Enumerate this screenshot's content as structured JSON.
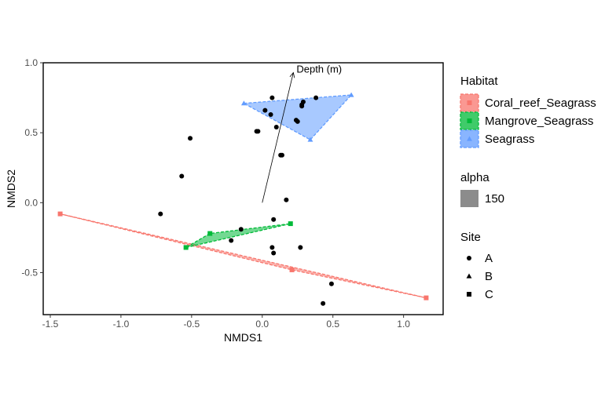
{
  "chart_data": {
    "type": "scatter",
    "title": "",
    "xlabel": "NMDS1",
    "ylabel": "NMDS2",
    "xlim": [
      -1.55,
      1.28
    ],
    "ylim": [
      -0.8,
      1.0
    ],
    "x_ticks": [
      -1.5,
      -1.0,
      -0.5,
      0.0,
      0.5,
      1.0
    ],
    "x_tick_labels": [
      "-1.5",
      "-1.0",
      "-0.5",
      "0.0",
      "0.5",
      "1.0"
    ],
    "y_ticks": [
      -0.5,
      0.0,
      0.5,
      1.0
    ],
    "y_tick_labels": [
      "-0.5",
      "0.0",
      "0.5",
      "1.0"
    ],
    "grid": false,
    "points": [
      {
        "x": 0.07,
        "y": 0.75
      },
      {
        "x": 0.38,
        "y": 0.75
      },
      {
        "x": 0.29,
        "y": 0.72
      },
      {
        "x": 0.28,
        "y": 0.7
      },
      {
        "x": 0.28,
        "y": 0.69
      },
      {
        "x": 0.02,
        "y": 0.66
      },
      {
        "x": 0.06,
        "y": 0.63
      },
      {
        "x": 0.24,
        "y": 0.59
      },
      {
        "x": 0.25,
        "y": 0.58
      },
      {
        "x": 0.1,
        "y": 0.54
      },
      {
        "x": -0.04,
        "y": 0.51
      },
      {
        "x": -0.03,
        "y": 0.51
      },
      {
        "x": -0.51,
        "y": 0.46
      },
      {
        "x": 0.13,
        "y": 0.34
      },
      {
        "x": 0.14,
        "y": 0.34
      },
      {
        "x": -0.57,
        "y": 0.19
      },
      {
        "x": 0.17,
        "y": 0.02
      },
      {
        "x": -0.72,
        "y": -0.08
      },
      {
        "x": 0.08,
        "y": -0.12
      },
      {
        "x": -0.15,
        "y": -0.19
      },
      {
        "x": -0.22,
        "y": -0.27
      },
      {
        "x": 0.07,
        "y": -0.32
      },
      {
        "x": 0.27,
        "y": -0.32
      },
      {
        "x": 0.08,
        "y": -0.36
      },
      {
        "x": 0.49,
        "y": -0.58
      },
      {
        "x": 0.43,
        "y": -0.72
      }
    ],
    "hulls": [
      {
        "habitat": "Coral_reef_Seagrass",
        "site": "C",
        "color": "#F8766D",
        "vertices": [
          {
            "x": -1.43,
            "y": -0.08
          },
          {
            "x": 1.16,
            "y": -0.68
          },
          {
            "x": 0.21,
            "y": -0.48
          }
        ]
      },
      {
        "habitat": "Mangrove_Seagrass",
        "site": "C",
        "color": "#00BA38",
        "vertices": [
          {
            "x": -0.54,
            "y": -0.32
          },
          {
            "x": 0.2,
            "y": -0.15
          },
          {
            "x": -0.37,
            "y": -0.22
          }
        ]
      },
      {
        "habitat": "Seagrass",
        "site": "B",
        "color": "#619CFF",
        "vertices": [
          {
            "x": -0.13,
            "y": 0.71
          },
          {
            "x": 0.63,
            "y": 0.77
          },
          {
            "x": 0.34,
            "y": 0.45
          }
        ]
      }
    ],
    "vector": {
      "label": "Depth (m)",
      "x0": 0.0,
      "y0": 0.0,
      "x1": 0.22,
      "y1": 0.93
    },
    "legend": {
      "placement": "right",
      "habitat": {
        "title": "Habitat",
        "items": [
          {
            "label": "Coral_reef_Seagrass",
            "color": "#F8766D"
          },
          {
            "label": "Mangrove_Seagrass",
            "color": "#00BA38"
          },
          {
            "label": "Seagrass",
            "color": "#619CFF"
          }
        ]
      },
      "alpha": {
        "title": "alpha",
        "items": [
          {
            "label": "150",
            "color": "#8c8c8c"
          }
        ]
      },
      "site": {
        "title": "Site",
        "items": [
          {
            "label": "A",
            "shape": "circle"
          },
          {
            "label": "B",
            "shape": "triangle"
          },
          {
            "label": "C",
            "shape": "square"
          }
        ]
      }
    }
  }
}
